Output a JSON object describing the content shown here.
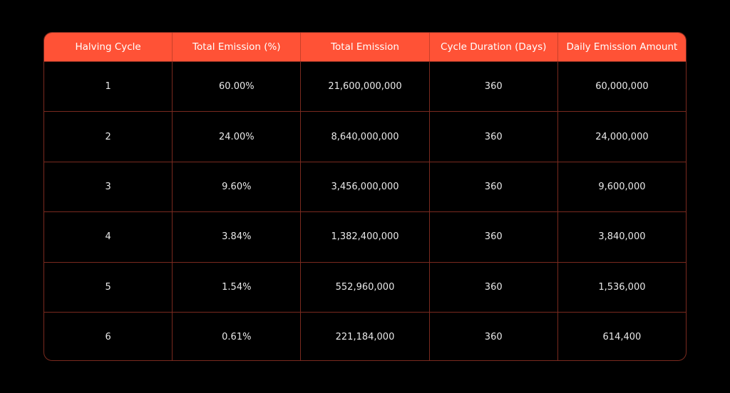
{
  "table": {
    "headers": [
      "Halving Cycle",
      "Total Emission (%)",
      "Total Emission",
      "Cycle Duration (Days)",
      "Daily Emission Amount"
    ],
    "rows": [
      [
        "1",
        "60.00%",
        "21,600,000,000",
        "360",
        "60,000,000"
      ],
      [
        "2",
        "24.00%",
        "8,640,000,000",
        "360",
        "24,000,000"
      ],
      [
        "3",
        "9.60%",
        "3,456,000,000",
        "360",
        "9,600,000"
      ],
      [
        "4",
        "3.84%",
        "1,382,400,000",
        "360",
        "3,840,000"
      ],
      [
        "5",
        "1.54%",
        "552,960,000",
        "360",
        "1,536,000"
      ],
      [
        "6",
        "0.61%",
        "221,184,000",
        "360",
        "614,400"
      ]
    ]
  },
  "colors": {
    "header": "#ff5236",
    "border": "#7a2a1f",
    "background": "#000000"
  }
}
